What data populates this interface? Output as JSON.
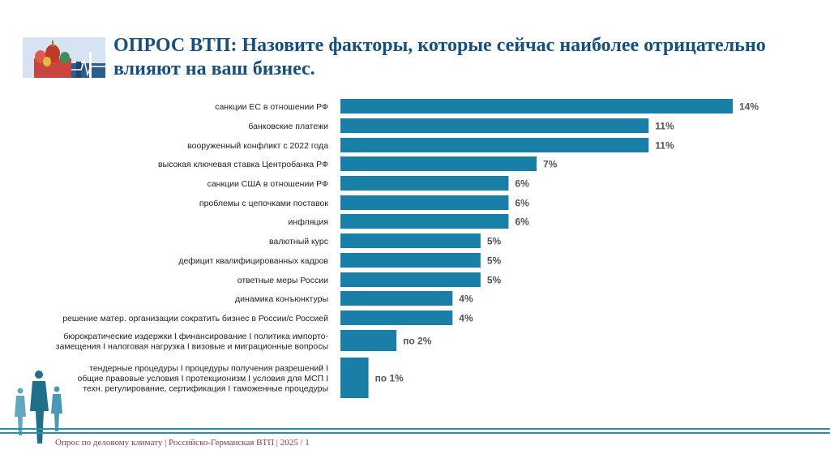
{
  "header": {
    "logo_icon": "moscow-kremlin-cathedral-logo",
    "title": "ОПРОС ВТП: Назовите факторы, которые сейчас наиболее отрицательно влияют на ваш бизнес."
  },
  "chart_data": {
    "type": "bar",
    "orientation": "horizontal",
    "title": "ОПРОС ВТП: Назовите факторы, которые сейчас наиболее отрицательно влияют на ваш бизнес.",
    "xlabel": "",
    "ylabel": "",
    "xlim": [
      0,
      14
    ],
    "bar_color": "#1a7fa6",
    "categories": [
      [
        "санкции ЕС в отношении РФ"
      ],
      [
        "банковские платежи"
      ],
      [
        "вооруженный конфликт с 2022 года"
      ],
      [
        "высокая ключевая ставка Центробанка РФ"
      ],
      [
        "санкции США в отношении РФ"
      ],
      [
        "проблемы с цепочками поставок"
      ],
      [
        "инфляция"
      ],
      [
        "валютный курс"
      ],
      [
        "дефицит квалифицированных кадров"
      ],
      [
        "ответные меры России"
      ],
      [
        "динамика конъюнктуры"
      ],
      [
        "решение матер. организации сократить бизнес в России/с Россией"
      ],
      [
        "бюрократические издержки I финансирование I политика импорто-",
        "замещения I налоговая нагрузка I визовые и миграционные вопросы"
      ],
      [
        "тендерные процедуры I процедуры получения разрешений I",
        "общие правовые условия I протекционизм I условия для МСП I",
        "техн. регулирование, сертификация I таможенные процедуры"
      ]
    ],
    "values": [
      14,
      11,
      11,
      7,
      6,
      6,
      6,
      5,
      5,
      5,
      4,
      4,
      2,
      1
    ],
    "data_labels": [
      "14%",
      "11%",
      "11%",
      "7%",
      "6%",
      "6%",
      "6%",
      "5%",
      "5%",
      "5%",
      "4%",
      "4%",
      "по 2%",
      "по 1%"
    ]
  },
  "footer": {
    "text": "Опрос по деловому климату | Российско-Германская ВТП |  2025 / 1",
    "people_icon": "business-people-silhouette-icon"
  }
}
